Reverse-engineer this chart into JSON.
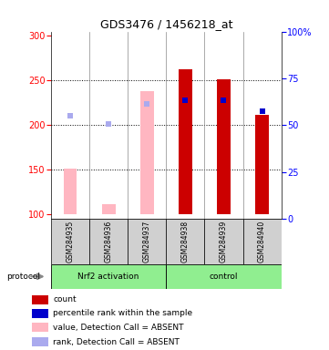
{
  "title": "GDS3476 / 1456218_at",
  "samples": [
    "GSM284935",
    "GSM284936",
    "GSM284937",
    "GSM284938",
    "GSM284939",
    "GSM284940"
  ],
  "ylim_left": [
    95,
    305
  ],
  "ylim_right": [
    0,
    100
  ],
  "yticks_left": [
    100,
    150,
    200,
    250,
    300
  ],
  "yticks_right": [
    0,
    25,
    50,
    75,
    100
  ],
  "yticklabels_right": [
    "0",
    "25",
    "50",
    "75",
    "100%"
  ],
  "bar_base": 100,
  "count_values": [
    null,
    null,
    null,
    263,
    251,
    212
  ],
  "percentile_values": [
    null,
    null,
    null,
    228,
    228,
    216
  ],
  "absent_value_values": [
    151,
    111,
    238,
    null,
    null,
    null
  ],
  "absent_rank_values": [
    210,
    201,
    224,
    null,
    null,
    null
  ],
  "count_color": "#CC0000",
  "percentile_color": "#0000CC",
  "absent_value_color": "#FFB6C1",
  "absent_rank_color": "#AAAAEE",
  "bg_color": "#FFFFFF",
  "legend_items": [
    "count",
    "percentile rank within the sample",
    "value, Detection Call = ABSENT",
    "rank, Detection Call = ABSENT"
  ],
  "legend_colors": [
    "#CC0000",
    "#0000CC",
    "#FFB6C1",
    "#AAAAEE"
  ],
  "bar_width": 0.35,
  "group_green": "#90EE90"
}
